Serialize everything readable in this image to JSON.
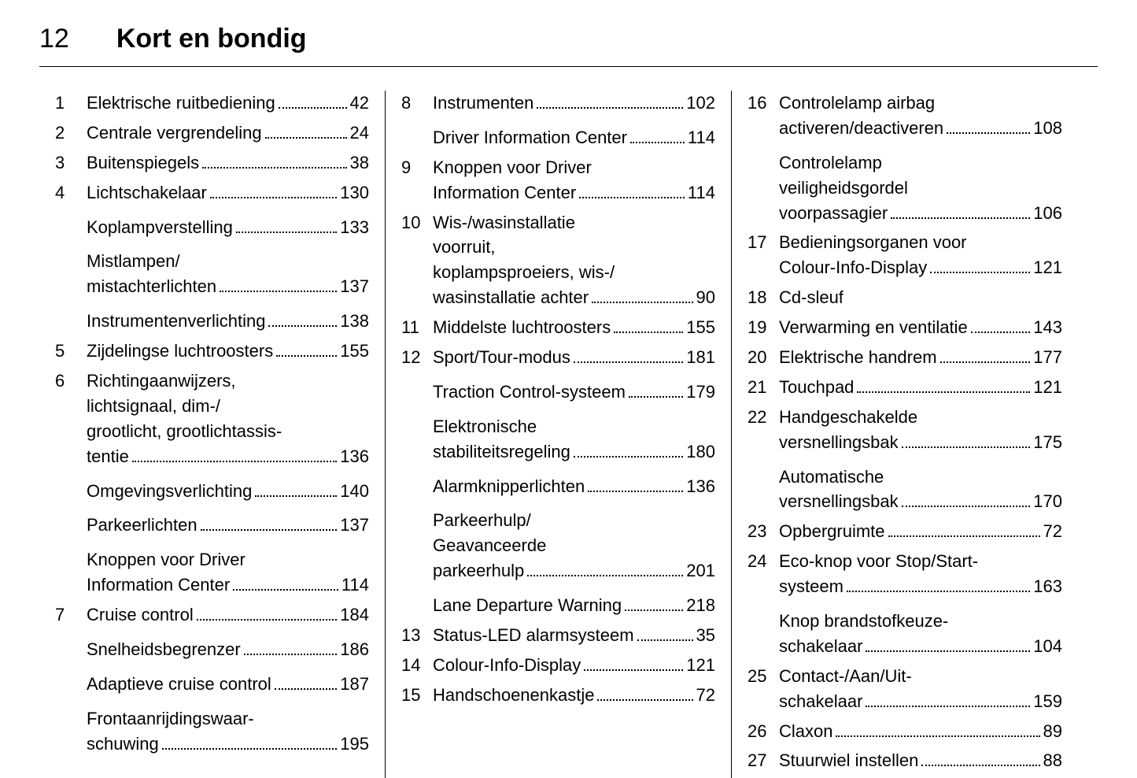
{
  "page_number": "12",
  "page_title": "Kort en bondig",
  "columns": [
    [
      {
        "num": "1",
        "lines": [
          "Elektrische ruitbediening"
        ],
        "page": "42",
        "sub": false
      },
      {
        "num": "2",
        "lines": [
          "Centrale vergrendeling"
        ],
        "page": "24",
        "sub": false
      },
      {
        "num": "3",
        "lines": [
          "Buitenspiegels"
        ],
        "page": "38",
        "sub": false
      },
      {
        "num": "4",
        "lines": [
          "Lichtschakelaar"
        ],
        "page": "130",
        "sub": false
      },
      {
        "num": "",
        "lines": [
          "Koplampverstelling"
        ],
        "page": "133",
        "sub": true
      },
      {
        "num": "",
        "lines": [
          "Mistlampen/",
          "mistachterlichten"
        ],
        "page": "137",
        "sub": true
      },
      {
        "num": "",
        "lines": [
          "Instrumentenverlichting"
        ],
        "page": "138",
        "sub": true
      },
      {
        "num": "5",
        "lines": [
          "Zijdelingse luchtroosters"
        ],
        "page": "155",
        "sub": false
      },
      {
        "num": "6",
        "lines": [
          "Richtingaanwijzers,",
          "lichtsignaal, dim-/",
          "grootlicht, grootlichtassis-",
          "tentie"
        ],
        "page": "136",
        "sub": false
      },
      {
        "num": "",
        "lines": [
          "Omgevingsverlichting"
        ],
        "page": "140",
        "sub": true
      },
      {
        "num": "",
        "lines": [
          "Parkeerlichten"
        ],
        "page": "137",
        "sub": true
      },
      {
        "num": "",
        "lines": [
          "Knoppen voor Driver",
          "Information Center"
        ],
        "page": "114",
        "sub": true
      },
      {
        "num": "7",
        "lines": [
          "Cruise control"
        ],
        "page": "184",
        "sub": false
      },
      {
        "num": "",
        "lines": [
          "Snelheidsbegrenzer"
        ],
        "page": "186",
        "sub": true
      },
      {
        "num": "",
        "lines": [
          "Adaptieve cruise control"
        ],
        "page": "187",
        "sub": true
      },
      {
        "num": "",
        "lines": [
          "Frontaanrijdingswaar-",
          "schuwing"
        ],
        "page": "195",
        "sub": true
      }
    ],
    [
      {
        "num": "8",
        "lines": [
          "Instrumenten"
        ],
        "page": "102",
        "sub": false
      },
      {
        "num": "",
        "lines": [
          "Driver Information Center"
        ],
        "page": "114",
        "sub": true
      },
      {
        "num": "9",
        "lines": [
          "Knoppen voor Driver",
          "Information Center"
        ],
        "page": "114",
        "sub": false
      },
      {
        "num": "10",
        "lines": [
          "Wis-/wasinstallatie",
          "voorruit,",
          "koplampsproeiers, wis-/",
          "wasinstallatie achter"
        ],
        "page": "90",
        "sub": false
      },
      {
        "num": "11",
        "lines": [
          "Middelste luchtroosters"
        ],
        "page": "155",
        "sub": false
      },
      {
        "num": "12",
        "lines": [
          "Sport/Tour-modus"
        ],
        "page": "181",
        "sub": false
      },
      {
        "num": "",
        "lines": [
          "Traction Control-systeem"
        ],
        "page": "179",
        "sub": true
      },
      {
        "num": "",
        "lines": [
          "Elektronische",
          "stabiliteitsregeling"
        ],
        "page": "180",
        "sub": true
      },
      {
        "num": "",
        "lines": [
          "Alarmknipperlichten"
        ],
        "page": "136",
        "sub": true
      },
      {
        "num": "",
        "lines": [
          "Parkeerhulp/",
          "Geavanceerde",
          "parkeerhulp"
        ],
        "page": "201",
        "sub": true
      },
      {
        "num": "",
        "lines": [
          "Lane Departure Warning"
        ],
        "page": "218",
        "sub": true
      },
      {
        "num": "13",
        "lines": [
          "Status-LED alarmsysteem"
        ],
        "page": "35",
        "sub": false
      },
      {
        "num": "14",
        "lines": [
          "Colour-Info-Display"
        ],
        "page": "121",
        "sub": false
      },
      {
        "num": "15",
        "lines": [
          "Handschoenenkastje"
        ],
        "page": "72",
        "sub": false
      }
    ],
    [
      {
        "num": "16",
        "lines": [
          "Controlelamp airbag",
          "activeren/deactiveren"
        ],
        "page": "108",
        "sub": false
      },
      {
        "num": "",
        "lines": [
          "Controlelamp",
          "veiligheidsgordel",
          "voorpassagier"
        ],
        "page": "106",
        "sub": true
      },
      {
        "num": "17",
        "lines": [
          "Bedieningsorganen voor",
          "Colour-Info-Display"
        ],
        "page": "121",
        "sub": false
      },
      {
        "num": "18",
        "lines": [
          "Cd-sleuf"
        ],
        "page": "",
        "sub": false,
        "nopage": true
      },
      {
        "num": "19",
        "lines": [
          "Verwarming en ventilatie"
        ],
        "page": "143",
        "sub": false
      },
      {
        "num": "20",
        "lines": [
          "Elektrische handrem"
        ],
        "page": "177",
        "sub": false
      },
      {
        "num": "21",
        "lines": [
          "Touchpad"
        ],
        "page": "121",
        "sub": false
      },
      {
        "num": "22",
        "lines": [
          "Handgeschakelde",
          "versnellingsbak"
        ],
        "page": "175",
        "sub": false
      },
      {
        "num": "",
        "lines": [
          "Automatische",
          "versnellingsbak"
        ],
        "page": "170",
        "sub": true
      },
      {
        "num": "23",
        "lines": [
          "Opbergruimte"
        ],
        "page": "72",
        "sub": false
      },
      {
        "num": "24",
        "lines": [
          "Eco-knop voor Stop/Start-",
          "systeem"
        ],
        "page": "163",
        "sub": false
      },
      {
        "num": "",
        "lines": [
          "Knop brandstofkeuze-",
          "schakelaar"
        ],
        "page": "104",
        "sub": true
      },
      {
        "num": "25",
        "lines": [
          "Contact-/Aan/Uit-",
          "schakelaar"
        ],
        "page": "159",
        "sub": false
      },
      {
        "num": "26",
        "lines": [
          "Claxon"
        ],
        "page": "89",
        "sub": false
      },
      {
        "num": "27",
        "lines": [
          "Stuurwiel instellen"
        ],
        "page": "88",
        "sub": false
      }
    ]
  ]
}
